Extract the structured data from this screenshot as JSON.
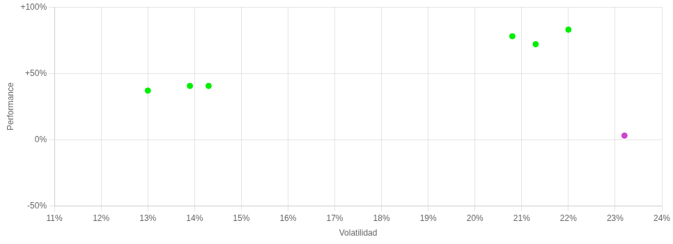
{
  "chart_data": {
    "type": "scatter",
    "xlabel": "Volatilidad",
    "ylabel": "Performance",
    "xlim": [
      0.11,
      0.24
    ],
    "ylim": [
      -0.5,
      1.0
    ],
    "xticks": [
      {
        "value": 0.11,
        "label": "11%"
      },
      {
        "value": 0.12,
        "label": "12%"
      },
      {
        "value": 0.13,
        "label": "13%"
      },
      {
        "value": 0.14,
        "label": "14%"
      },
      {
        "value": 0.15,
        "label": "15%"
      },
      {
        "value": 0.16,
        "label": "16%"
      },
      {
        "value": 0.17,
        "label": "17%"
      },
      {
        "value": 0.18,
        "label": "18%"
      },
      {
        "value": 0.19,
        "label": "19%"
      },
      {
        "value": 0.2,
        "label": "20%"
      },
      {
        "value": 0.21,
        "label": "21%"
      },
      {
        "value": 0.22,
        "label": "22%"
      },
      {
        "value": 0.23,
        "label": "23%"
      },
      {
        "value": 0.24,
        "label": "24%"
      }
    ],
    "yticks": [
      {
        "value": -0.5,
        "label": "-50%"
      },
      {
        "value": 0.0,
        "label": "0%"
      },
      {
        "value": 0.5,
        "label": "+50%"
      },
      {
        "value": 1.0,
        "label": "+100%"
      }
    ],
    "grid": true,
    "series": [
      {
        "color": "#00ee00",
        "x": [
          0.13,
          0.139,
          0.143,
          0.208,
          0.213,
          0.22
        ],
        "values": [
          0.37,
          0.405,
          0.405,
          0.78,
          0.72,
          0.83
        ]
      },
      {
        "color": "#cc44cc",
        "x": [
          0.232
        ],
        "values": [
          0.03
        ]
      }
    ]
  }
}
